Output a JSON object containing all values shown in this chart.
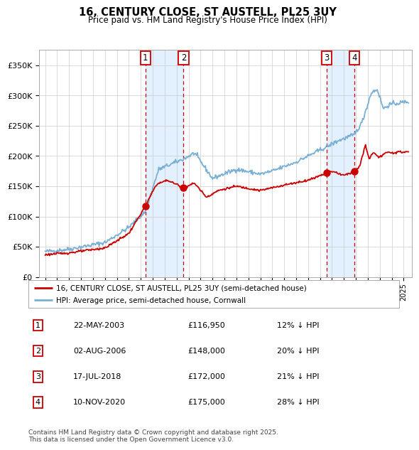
{
  "title": "16, CENTURY CLOSE, ST AUSTELL, PL25 3UY",
  "subtitle": "Price paid vs. HM Land Registry's House Price Index (HPI)",
  "legend_property": "16, CENTURY CLOSE, ST AUSTELL, PL25 3UY (semi-detached house)",
  "legend_hpi": "HPI: Average price, semi-detached house, Cornwall",
  "footer": "Contains HM Land Registry data © Crown copyright and database right 2025.\nThis data is licensed under the Open Government Licence v3.0.",
  "transactions": [
    {
      "num": 1,
      "date": "22-MAY-2003",
      "price": 116950,
      "pct": "12%",
      "date_val": 2003.38
    },
    {
      "num": 2,
      "date": "02-AUG-2006",
      "price": 148000,
      "pct": "20%",
      "date_val": 2006.58
    },
    {
      "num": 3,
      "date": "17-JUL-2018",
      "price": 172000,
      "pct": "21%",
      "date_val": 2018.54
    },
    {
      "num": 4,
      "date": "10-NOV-2020",
      "price": 175000,
      "pct": "28%",
      "date_val": 2020.86
    }
  ],
  "property_color": "#cc0000",
  "hpi_color": "#7ab0d4",
  "background_color": "#ffffff",
  "grid_color": "#cccccc",
  "shade_color": "#ddeeff",
  "ylim": [
    0,
    375000
  ],
  "xlim_start": 1994.5,
  "xlim_end": 2025.7
}
